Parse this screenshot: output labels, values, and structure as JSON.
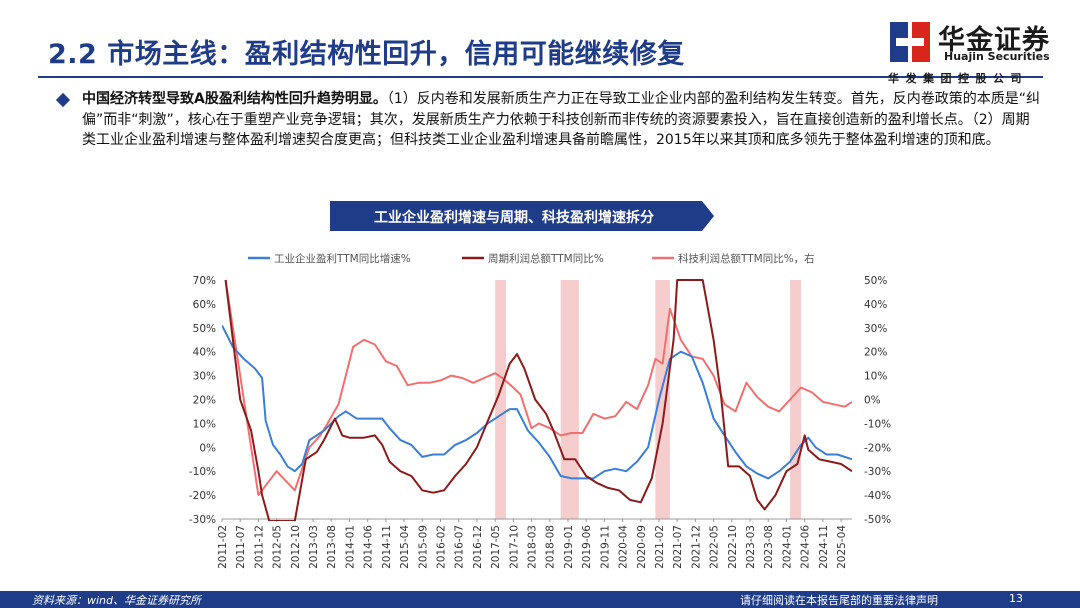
{
  "header": {
    "title": "2.2 市场主线：盈利结构性回升，信用可能继续修复",
    "logo_cn": "华金证券",
    "logo_en": "Huajin Securities",
    "logo_company": "华发集团控股公司"
  },
  "body": {
    "lead": "中国经济转型导致A股盈利结构性回升趋势明显。",
    "text": "（1）反内卷和发展新质生产力正在导致工业企业内部的盈利结构发生转变。首先，反内卷政策的本质是“纠偏”而非“刺激”，核心在于重塑产业竞争逻辑；其次，发展新质生产力依赖于科技创新而非传统的资源要素投入，旨在直接创造新的盈利增长点。（2）周期类工业企业盈利增速与整体盈利增速契合度更高；但科技类工业企业盈利增速具备前瞻属性，2015年以来其顶和底多领先于整体盈利增速的顶和底。"
  },
  "chart_banner": "工业企业盈利增速与周期、科技盈利增速拆分",
  "colors": {
    "brand": "#1f3c88",
    "industrial": "#3a7fd5",
    "cycle": "#8b1a1a",
    "tech": "#f07070",
    "shade": "#f4c4c4"
  },
  "chart_data": {
    "type": "line",
    "x_ticks": [
      "2011-02",
      "2011-07",
      "2011-12",
      "2012-05",
      "2012-10",
      "2013-03",
      "2013-08",
      "2014-01",
      "2014-06",
      "2014-11",
      "2015-04",
      "2015-09",
      "2016-02",
      "2016-07",
      "2016-12",
      "2017-05",
      "2017-10",
      "2018-03",
      "2018-08",
      "2019-01",
      "2019-06",
      "2019-11",
      "2020-04",
      "2020-09",
      "2021-02",
      "2021-07",
      "2021-12",
      "2022-05",
      "2022-10",
      "2023-03",
      "2023-08",
      "2024-01",
      "2024-06",
      "2024-11",
      "2025-04"
    ],
    "x_range": [
      "2011-02",
      "2025-07"
    ],
    "y_left": {
      "min": -30,
      "max": 70,
      "ticks": [
        "70%",
        "60%",
        "50%",
        "40%",
        "30%",
        "20%",
        "10%",
        "0%",
        "-10%",
        "-20%",
        "-30%"
      ]
    },
    "y_right": {
      "min": -50,
      "max": 50,
      "ticks": [
        "50%",
        "40%",
        "30%",
        "20%",
        "10%",
        "0%",
        "-10%",
        "-20%",
        "-30%",
        "-40%",
        "-50%"
      ]
    },
    "legend_position": "top",
    "shaded_periods": [
      [
        "2017-05",
        "2017-08"
      ],
      [
        "2018-11",
        "2019-04"
      ],
      [
        "2021-01",
        "2021-05"
      ],
      [
        "2024-02",
        "2024-05"
      ]
    ],
    "series": [
      {
        "name": "工业企业盈利TTM同比增速%",
        "axis": "left",
        "color": "#3a7fd5",
        "points": [
          [
            "2011-02",
            51
          ],
          [
            "2011-05",
            42
          ],
          [
            "2011-08",
            37
          ],
          [
            "2011-11",
            33
          ],
          [
            "2012-01",
            29
          ],
          [
            "2012-02",
            11
          ],
          [
            "2012-04",
            1
          ],
          [
            "2012-06",
            -3
          ],
          [
            "2012-08",
            -8
          ],
          [
            "2012-10",
            -10
          ],
          [
            "2012-12",
            -7
          ],
          [
            "2013-02",
            3
          ],
          [
            "2013-04",
            5
          ],
          [
            "2013-06",
            7
          ],
          [
            "2013-08",
            10
          ],
          [
            "2013-10",
            13
          ],
          [
            "2013-12",
            15
          ],
          [
            "2014-03",
            12
          ],
          [
            "2014-07",
            12
          ],
          [
            "2014-10",
            12
          ],
          [
            "2014-12",
            8
          ],
          [
            "2015-03",
            3
          ],
          [
            "2015-06",
            1
          ],
          [
            "2015-09",
            -4
          ],
          [
            "2015-12",
            -3
          ],
          [
            "2016-03",
            -3
          ],
          [
            "2016-06",
            1
          ],
          [
            "2016-09",
            3
          ],
          [
            "2016-12",
            6
          ],
          [
            "2017-03",
            10
          ],
          [
            "2017-06",
            13
          ],
          [
            "2017-09",
            16
          ],
          [
            "2017-11",
            16
          ],
          [
            "2018-02",
            7
          ],
          [
            "2018-05",
            2
          ],
          [
            "2018-08",
            -4
          ],
          [
            "2018-11",
            -12
          ],
          [
            "2019-02",
            -13
          ],
          [
            "2019-05",
            -13
          ],
          [
            "2019-08",
            -13
          ],
          [
            "2019-11",
            -10
          ],
          [
            "2020-02",
            -9
          ],
          [
            "2020-05",
            -10
          ],
          [
            "2020-08",
            -6
          ],
          [
            "2020-11",
            0
          ],
          [
            "2021-02",
            20
          ],
          [
            "2021-05",
            37
          ],
          [
            "2021-08",
            40
          ],
          [
            "2021-11",
            38
          ],
          [
            "2022-02",
            27
          ],
          [
            "2022-05",
            12
          ],
          [
            "2022-08",
            5
          ],
          [
            "2022-11",
            -2
          ],
          [
            "2023-02",
            -8
          ],
          [
            "2023-05",
            -11
          ],
          [
            "2023-08",
            -13
          ],
          [
            "2023-11",
            -10
          ],
          [
            "2024-02",
            -6
          ],
          [
            "2024-05",
            1
          ],
          [
            "2024-07",
            4
          ],
          [
            "2024-09",
            0
          ],
          [
            "2024-12",
            -3
          ],
          [
            "2025-03",
            -3
          ],
          [
            "2025-07",
            -5
          ]
        ]
      },
      {
        "name": "周期利润总额TTM同比%",
        "axis": "left",
        "color": "#8b1a1a",
        "points": [
          [
            "2011-03",
            70
          ],
          [
            "2011-07",
            20
          ],
          [
            "2011-10",
            7
          ],
          [
            "2011-12",
            -10
          ],
          [
            "2012-01",
            -20
          ],
          [
            "2012-03",
            -32
          ],
          [
            "2012-10",
            -32
          ],
          [
            "2013-01",
            -5
          ],
          [
            "2013-04",
            -2
          ],
          [
            "2013-06",
            3
          ],
          [
            "2013-09",
            12
          ],
          [
            "2013-11",
            5
          ],
          [
            "2014-01",
            4
          ],
          [
            "2014-05",
            4
          ],
          [
            "2014-08",
            5
          ],
          [
            "2014-10",
            1
          ],
          [
            "2014-12",
            -6
          ],
          [
            "2015-03",
            -10
          ],
          [
            "2015-06",
            -12
          ],
          [
            "2015-09",
            -18
          ],
          [
            "2015-12",
            -19
          ],
          [
            "2016-03",
            -18
          ],
          [
            "2016-06",
            -12
          ],
          [
            "2016-09",
            -7
          ],
          [
            "2016-12",
            0
          ],
          [
            "2017-03",
            11
          ],
          [
            "2017-06",
            22
          ],
          [
            "2017-09",
            35
          ],
          [
            "2017-11",
            39
          ],
          [
            "2018-01",
            33
          ],
          [
            "2018-04",
            20
          ],
          [
            "2018-07",
            14
          ],
          [
            "2018-09",
            7
          ],
          [
            "2018-12",
            -5
          ],
          [
            "2019-03",
            -5
          ],
          [
            "2019-06",
            -12
          ],
          [
            "2019-09",
            -15
          ],
          [
            "2019-12",
            -17
          ],
          [
            "2020-03",
            -18
          ],
          [
            "2020-06",
            -22
          ],
          [
            "2020-09",
            -23
          ],
          [
            "2020-12",
            -13
          ],
          [
            "2021-03",
            10
          ],
          [
            "2021-06",
            45
          ],
          [
            "2021-07",
            70
          ],
          [
            "2022-02",
            70
          ],
          [
            "2022-05",
            45
          ],
          [
            "2022-07",
            22
          ],
          [
            "2022-09",
            -8
          ],
          [
            "2022-12",
            -8
          ],
          [
            "2023-03",
            -12
          ],
          [
            "2023-05",
            -22
          ],
          [
            "2023-07",
            -26
          ],
          [
            "2023-10",
            -20
          ],
          [
            "2024-01",
            -10
          ],
          [
            "2024-04",
            -7
          ],
          [
            "2024-06",
            5
          ],
          [
            "2024-07",
            -1
          ],
          [
            "2024-10",
            -5
          ],
          [
            "2025-01",
            -6
          ],
          [
            "2025-04",
            -7
          ],
          [
            "2025-07",
            -10
          ]
        ]
      },
      {
        "name": "科技利润总额TTM同比%，右",
        "axis": "right",
        "color": "#f07070",
        "points": [
          [
            "2011-03",
            50
          ],
          [
            "2011-12",
            -40
          ],
          [
            "2012-05",
            -30
          ],
          [
            "2012-10",
            -38
          ],
          [
            "2013-02",
            -20
          ],
          [
            "2013-05",
            -15
          ],
          [
            "2013-07",
            -10
          ],
          [
            "2013-10",
            -2
          ],
          [
            "2013-12",
            10
          ],
          [
            "2014-02",
            22
          ],
          [
            "2014-05",
            25
          ],
          [
            "2014-08",
            23
          ],
          [
            "2014-11",
            16
          ],
          [
            "2015-02",
            14
          ],
          [
            "2015-05",
            6
          ],
          [
            "2015-08",
            7
          ],
          [
            "2015-11",
            7
          ],
          [
            "2016-02",
            8
          ],
          [
            "2016-05",
            10
          ],
          [
            "2016-08",
            9
          ],
          [
            "2016-11",
            7
          ],
          [
            "2017-02",
            9
          ],
          [
            "2017-05",
            11
          ],
          [
            "2017-07",
            9
          ],
          [
            "2017-10",
            5
          ],
          [
            "2017-12",
            2
          ],
          [
            "2018-03",
            -12
          ],
          [
            "2018-05",
            -10
          ],
          [
            "2018-08",
            -12
          ],
          [
            "2018-11",
            -15
          ],
          [
            "2019-02",
            -14
          ],
          [
            "2019-05",
            -14
          ],
          [
            "2019-08",
            -6
          ],
          [
            "2019-11",
            -8
          ],
          [
            "2020-02",
            -7
          ],
          [
            "2020-05",
            -1
          ],
          [
            "2020-08",
            -4
          ],
          [
            "2020-11",
            6
          ],
          [
            "2021-01",
            17
          ],
          [
            "2021-03",
            15
          ],
          [
            "2021-05",
            38
          ],
          [
            "2021-08",
            25
          ],
          [
            "2021-11",
            18
          ],
          [
            "2022-02",
            17
          ],
          [
            "2022-05",
            10
          ],
          [
            "2022-08",
            -2
          ],
          [
            "2022-11",
            -5
          ],
          [
            "2023-02",
            7
          ],
          [
            "2023-05",
            1
          ],
          [
            "2023-08",
            -3
          ],
          [
            "2023-11",
            -5
          ],
          [
            "2024-02",
            0
          ],
          [
            "2024-05",
            5
          ],
          [
            "2024-08",
            3
          ],
          [
            "2024-11",
            -1
          ],
          [
            "2025-02",
            -2
          ],
          [
            "2025-05",
            -3
          ],
          [
            "2025-07",
            -1
          ]
        ]
      }
    ]
  },
  "footer": {
    "source": "资料来源：wind、华金证券研究所",
    "notice": "请仔细阅读在本报告尾部的重要法律声明",
    "page": "13"
  }
}
